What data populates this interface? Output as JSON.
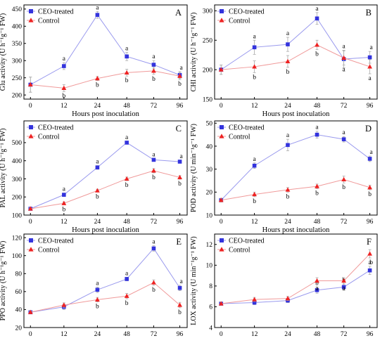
{
  "chart_data": [
    {
      "type": "line",
      "panel_letter": "A",
      "xlabel": "Hours post inoculation",
      "ylabel": "Glu activity (U h⁻¹g⁻¹ FW)",
      "x": [
        0,
        12,
        24,
        48,
        72,
        96
      ],
      "x_tick_labels": [
        "0",
        "12",
        "24",
        "48",
        "72",
        "96"
      ],
      "y_ticks": [
        200,
        250,
        300,
        350,
        400,
        450
      ],
      "ylim": [
        188,
        462
      ],
      "series": [
        {
          "name": "CEO-treated",
          "color": "#3333dd",
          "marker": "square",
          "values": [
            230,
            284,
            433,
            312,
            288,
            258
          ],
          "errors": [
            22,
            10,
            10,
            12,
            12,
            10
          ],
          "labels": [
            "",
            "a",
            "a",
            "a",
            "a",
            "a"
          ]
        },
        {
          "name": "Control",
          "color": "#ee2222",
          "marker": "triangle",
          "values": [
            230,
            220,
            248,
            265,
            270,
            255
          ],
          "errors": [
            22,
            10,
            6,
            10,
            10,
            10
          ],
          "labels": [
            "",
            "b",
            "b",
            "b",
            "b",
            "b"
          ]
        }
      ],
      "legend_position": "top-left"
    },
    {
      "type": "line",
      "panel_letter": "B",
      "xlabel": "Hours post inoculation",
      "ylabel": "CHI activity (U h⁻¹g⁻¹ FW)",
      "x": [
        0,
        12,
        24,
        48,
        72,
        96
      ],
      "x_tick_labels": [
        "0",
        "12",
        "24",
        "48",
        "72",
        "96"
      ],
      "y_ticks": [
        150,
        200,
        250,
        300
      ],
      "ylim": [
        150,
        310
      ],
      "series": [
        {
          "name": "CEO-treated",
          "color": "#3333dd",
          "marker": "square",
          "values": [
            200,
            238,
            243,
            287,
            218,
            221
          ],
          "errors": [
            8,
            12,
            12,
            10,
            15,
            10
          ],
          "labels": [
            "",
            "a",
            "a",
            "a",
            "a",
            "a"
          ]
        },
        {
          "name": "Control",
          "color": "#ee2222",
          "marker": "triangle",
          "values": [
            200,
            205,
            214,
            242,
            220,
            205
          ],
          "errors": [
            8,
            10,
            10,
            8,
            12,
            12
          ],
          "labels": [
            "",
            "b",
            "b",
            "b",
            "a",
            "a"
          ]
        }
      ],
      "legend_position": "top-left"
    },
    {
      "type": "line",
      "panel_letter": "C",
      "xlabel": "Hours post inoculation",
      "ylabel": "PAL activity (U h⁻¹g⁻¹ FW)",
      "x": [
        0,
        12,
        24,
        48,
        72,
        96
      ],
      "x_tick_labels": [
        "0",
        "12",
        "24",
        "48",
        "72",
        "96"
      ],
      "y_ticks": [
        100,
        200,
        300,
        400,
        500
      ],
      "ylim": [
        100,
        620
      ],
      "series": [
        {
          "name": "CEO-treated",
          "color": "#3333dd",
          "marker": "square",
          "values": [
            135,
            212,
            363,
            500,
            405,
            395
          ],
          "errors": [
            6,
            10,
            10,
            8,
            8,
            8
          ],
          "labels": [
            "",
            "a",
            "a",
            "a",
            "a",
            "a"
          ]
        },
        {
          "name": "Control",
          "color": "#ee2222",
          "marker": "triangle",
          "values": [
            135,
            165,
            235,
            300,
            345,
            308
          ],
          "errors": [
            6,
            8,
            8,
            10,
            12,
            10
          ],
          "labels": [
            "",
            "b",
            "b",
            "b",
            "b",
            "b"
          ]
        }
      ],
      "legend_position": "top-left"
    },
    {
      "type": "line",
      "panel_letter": "D",
      "xlabel": "Hours post inoculation",
      "ylabel": "POD activity (U min⁻¹g⁻¹ FW)",
      "x": [
        0,
        12,
        24,
        48,
        72,
        96
      ],
      "x_tick_labels": [
        "0",
        "12",
        "24",
        "48",
        "72",
        "96"
      ],
      "y_ticks": [
        10,
        20,
        30,
        40,
        50
      ],
      "ylim": [
        10,
        51
      ],
      "series": [
        {
          "name": "CEO-treated",
          "color": "#3333dd",
          "marker": "square",
          "values": [
            16.5,
            31.5,
            40.5,
            45,
            43,
            34.5
          ],
          "errors": [
            0.8,
            1.2,
            2.5,
            1.5,
            1.2,
            1.2
          ],
          "labels": [
            "",
            "a",
            "a",
            "a",
            "a",
            "a"
          ]
        },
        {
          "name": "Control",
          "color": "#ee2222",
          "marker": "triangle",
          "values": [
            16.5,
            19,
            21,
            22.5,
            25.5,
            22
          ],
          "errors": [
            0.8,
            1.0,
            1.0,
            1.0,
            1.5,
            1.0
          ],
          "labels": [
            "",
            "b",
            "b",
            "b",
            "b",
            "b"
          ]
        }
      ],
      "legend_position": "top-left"
    },
    {
      "type": "line",
      "panel_letter": "E",
      "xlabel": "Hours post inoculation",
      "ylabel": "PPO activity (U h⁻¹g⁻¹ FW)",
      "x": [
        0,
        12,
        24,
        48,
        72,
        96
      ],
      "x_tick_labels": [
        "0",
        "12",
        "24",
        "48",
        "72",
        "96"
      ],
      "y_ticks": [
        20,
        40,
        60,
        80,
        100,
        120
      ],
      "ylim": [
        20,
        124
      ],
      "series": [
        {
          "name": "CEO-treated",
          "color": "#3333dd",
          "marker": "square",
          "values": [
            37,
            43,
            62,
            74,
            108,
            64
          ],
          "errors": [
            1.5,
            3,
            3,
            2,
            3,
            3
          ],
          "labels": [
            "",
            "",
            "a",
            "a",
            "a",
            "a"
          ]
        },
        {
          "name": "Control",
          "color": "#ee2222",
          "marker": "triangle",
          "values": [
            37,
            45,
            51,
            55,
            70,
            45
          ],
          "errors": [
            1.5,
            2.5,
            2.5,
            3,
            3,
            3
          ],
          "labels": [
            "",
            "",
            "b",
            "b",
            "b",
            "b"
          ]
        }
      ],
      "legend_position": "top-left"
    },
    {
      "type": "line",
      "panel_letter": "F",
      "xlabel": "Hours post inoculation",
      "ylabel": "LOX activity (U min⁻¹g⁻¹ FW)",
      "x": [
        0,
        12,
        24,
        48,
        72,
        96
      ],
      "x_tick_labels": [
        "0",
        "12",
        "24",
        "48",
        "72",
        "96"
      ],
      "y_ticks": [
        4,
        6,
        8,
        10,
        12
      ],
      "ylim": [
        4,
        13
      ],
      "series": [
        {
          "name": "CEO-treated",
          "color": "#3333dd",
          "marker": "square",
          "values": [
            6.3,
            6.4,
            6.6,
            7.6,
            7.9,
            9.5
          ],
          "errors": [
            0.15,
            0.2,
            0.2,
            0.3,
            0.3,
            0.4
          ],
          "labels": [
            "",
            "",
            "",
            "b",
            "b",
            "b"
          ]
        },
        {
          "name": "Control",
          "color": "#ee2222",
          "marker": "triangle",
          "values": [
            6.3,
            6.7,
            6.8,
            8.5,
            8.5,
            11.1
          ],
          "errors": [
            0.15,
            0.2,
            0.2,
            0.3,
            0.3,
            0.4
          ],
          "labels": [
            "",
            "",
            "",
            "a",
            "a",
            "a"
          ]
        }
      ],
      "legend_position": "top-left"
    }
  ]
}
